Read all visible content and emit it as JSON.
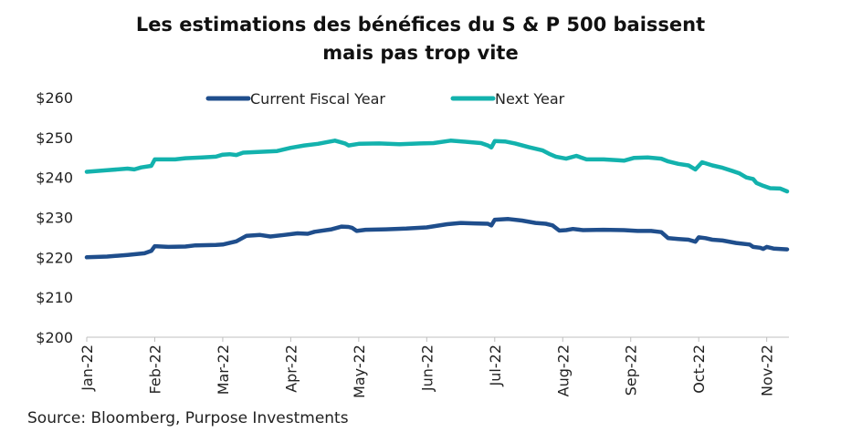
{
  "chart_data": {
    "type": "line",
    "title_lines": [
      "Les estimations des bénéfices du S & P 500 baissent",
      "mais pas trop vite"
    ],
    "ylim": [
      200,
      260
    ],
    "yticks": [
      "$200",
      "$210",
      "$220",
      "$230",
      "$240",
      "$250",
      "$260"
    ],
    "ytick_values": [
      200,
      210,
      220,
      230,
      240,
      250,
      260
    ],
    "categories": [
      "Jan-22",
      "Feb-22",
      "Mar-22",
      "Apr-22",
      "May-22",
      "Jun-22",
      "Jul-22",
      "Aug-22",
      "Sep-22",
      "Oct-22",
      "Nov-22"
    ],
    "x_range": [
      0,
      10.3
    ],
    "series": [
      {
        "name": "Current Fiscal Year",
        "color": "#1f4e8c",
        "points": [
          [
            0,
            220.0
          ],
          [
            0.3,
            220.2
          ],
          [
            0.6,
            220.6
          ],
          [
            0.85,
            221.0
          ],
          [
            0.95,
            221.6
          ],
          [
            1.0,
            222.8
          ],
          [
            1.2,
            222.6
          ],
          [
            1.45,
            222.7
          ],
          [
            1.6,
            223.0
          ],
          [
            1.9,
            223.1
          ],
          [
            2.0,
            223.2
          ],
          [
            2.2,
            224.0
          ],
          [
            2.35,
            225.4
          ],
          [
            2.55,
            225.6
          ],
          [
            2.7,
            225.2
          ],
          [
            2.9,
            225.6
          ],
          [
            3.1,
            226.0
          ],
          [
            3.25,
            225.9
          ],
          [
            3.35,
            226.4
          ],
          [
            3.6,
            227.0
          ],
          [
            3.75,
            227.7
          ],
          [
            3.85,
            227.6
          ],
          [
            3.9,
            227.4
          ],
          [
            3.97,
            226.6
          ],
          [
            4.1,
            226.9
          ],
          [
            4.4,
            227.0
          ],
          [
            4.7,
            227.2
          ],
          [
            5.0,
            227.5
          ],
          [
            5.3,
            228.3
          ],
          [
            5.5,
            228.6
          ],
          [
            5.7,
            228.5
          ],
          [
            5.9,
            228.4
          ],
          [
            5.95,
            228.0
          ],
          [
            6.0,
            229.4
          ],
          [
            6.2,
            229.6
          ],
          [
            6.4,
            229.2
          ],
          [
            6.6,
            228.6
          ],
          [
            6.75,
            228.4
          ],
          [
            6.85,
            228.0
          ],
          [
            6.95,
            226.7
          ],
          [
            7.05,
            226.8
          ],
          [
            7.15,
            227.1
          ],
          [
            7.3,
            226.8
          ],
          [
            7.6,
            226.9
          ],
          [
            7.9,
            226.8
          ],
          [
            8.1,
            226.6
          ],
          [
            8.3,
            226.6
          ],
          [
            8.45,
            226.3
          ],
          [
            8.55,
            224.8
          ],
          [
            8.7,
            224.6
          ],
          [
            8.85,
            224.4
          ],
          [
            8.95,
            223.9
          ],
          [
            9.0,
            225.0
          ],
          [
            9.1,
            224.8
          ],
          [
            9.2,
            224.4
          ],
          [
            9.35,
            224.2
          ],
          [
            9.55,
            223.6
          ],
          [
            9.75,
            223.2
          ],
          [
            9.8,
            222.6
          ],
          [
            9.9,
            222.4
          ],
          [
            9.95,
            222.1
          ],
          [
            10.0,
            222.6
          ],
          [
            10.1,
            222.2
          ],
          [
            10.3,
            222.0
          ]
        ]
      },
      {
        "name": "Next Year",
        "color": "#13b2ad",
        "points": [
          [
            0,
            241.4
          ],
          [
            0.3,
            241.8
          ],
          [
            0.6,
            242.2
          ],
          [
            0.7,
            242.0
          ],
          [
            0.8,
            242.5
          ],
          [
            0.95,
            242.9
          ],
          [
            1.0,
            244.5
          ],
          [
            1.3,
            244.5
          ],
          [
            1.45,
            244.8
          ],
          [
            1.7,
            245.0
          ],
          [
            1.9,
            245.2
          ],
          [
            2.0,
            245.7
          ],
          [
            2.1,
            245.8
          ],
          [
            2.2,
            245.6
          ],
          [
            2.3,
            246.2
          ],
          [
            2.55,
            246.4
          ],
          [
            2.8,
            246.6
          ],
          [
            3.0,
            247.4
          ],
          [
            3.2,
            248.0
          ],
          [
            3.4,
            248.4
          ],
          [
            3.55,
            248.9
          ],
          [
            3.65,
            249.2
          ],
          [
            3.8,
            248.5
          ],
          [
            3.85,
            248.0
          ],
          [
            4.0,
            248.4
          ],
          [
            4.3,
            248.5
          ],
          [
            4.6,
            248.3
          ],
          [
            4.9,
            248.5
          ],
          [
            5.1,
            248.6
          ],
          [
            5.35,
            249.2
          ],
          [
            5.6,
            248.9
          ],
          [
            5.8,
            248.6
          ],
          [
            5.9,
            248.0
          ],
          [
            5.95,
            247.5
          ],
          [
            6.0,
            249.1
          ],
          [
            6.15,
            249.0
          ],
          [
            6.3,
            248.5
          ],
          [
            6.5,
            247.6
          ],
          [
            6.7,
            246.8
          ],
          [
            6.8,
            245.9
          ],
          [
            6.9,
            245.2
          ],
          [
            7.05,
            244.7
          ],
          [
            7.2,
            245.4
          ],
          [
            7.35,
            244.5
          ],
          [
            7.6,
            244.5
          ],
          [
            7.8,
            244.3
          ],
          [
            7.9,
            244.2
          ],
          [
            8.05,
            244.9
          ],
          [
            8.25,
            245.0
          ],
          [
            8.45,
            244.7
          ],
          [
            8.55,
            244.0
          ],
          [
            8.7,
            243.4
          ],
          [
            8.85,
            243.0
          ],
          [
            8.95,
            242.0
          ],
          [
            9.05,
            243.8
          ],
          [
            9.2,
            243.0
          ],
          [
            9.35,
            242.4
          ],
          [
            9.5,
            241.6
          ],
          [
            9.6,
            241.0
          ],
          [
            9.7,
            240.0
          ],
          [
            9.8,
            239.6
          ],
          [
            9.85,
            238.6
          ],
          [
            9.95,
            237.9
          ],
          [
            10.05,
            237.3
          ],
          [
            10.2,
            237.2
          ],
          [
            10.3,
            236.5
          ]
        ]
      }
    ],
    "legend_position": "top-center",
    "grid": false
  },
  "footer": {
    "source": "Source: Bloomberg, Purpose Investments"
  }
}
